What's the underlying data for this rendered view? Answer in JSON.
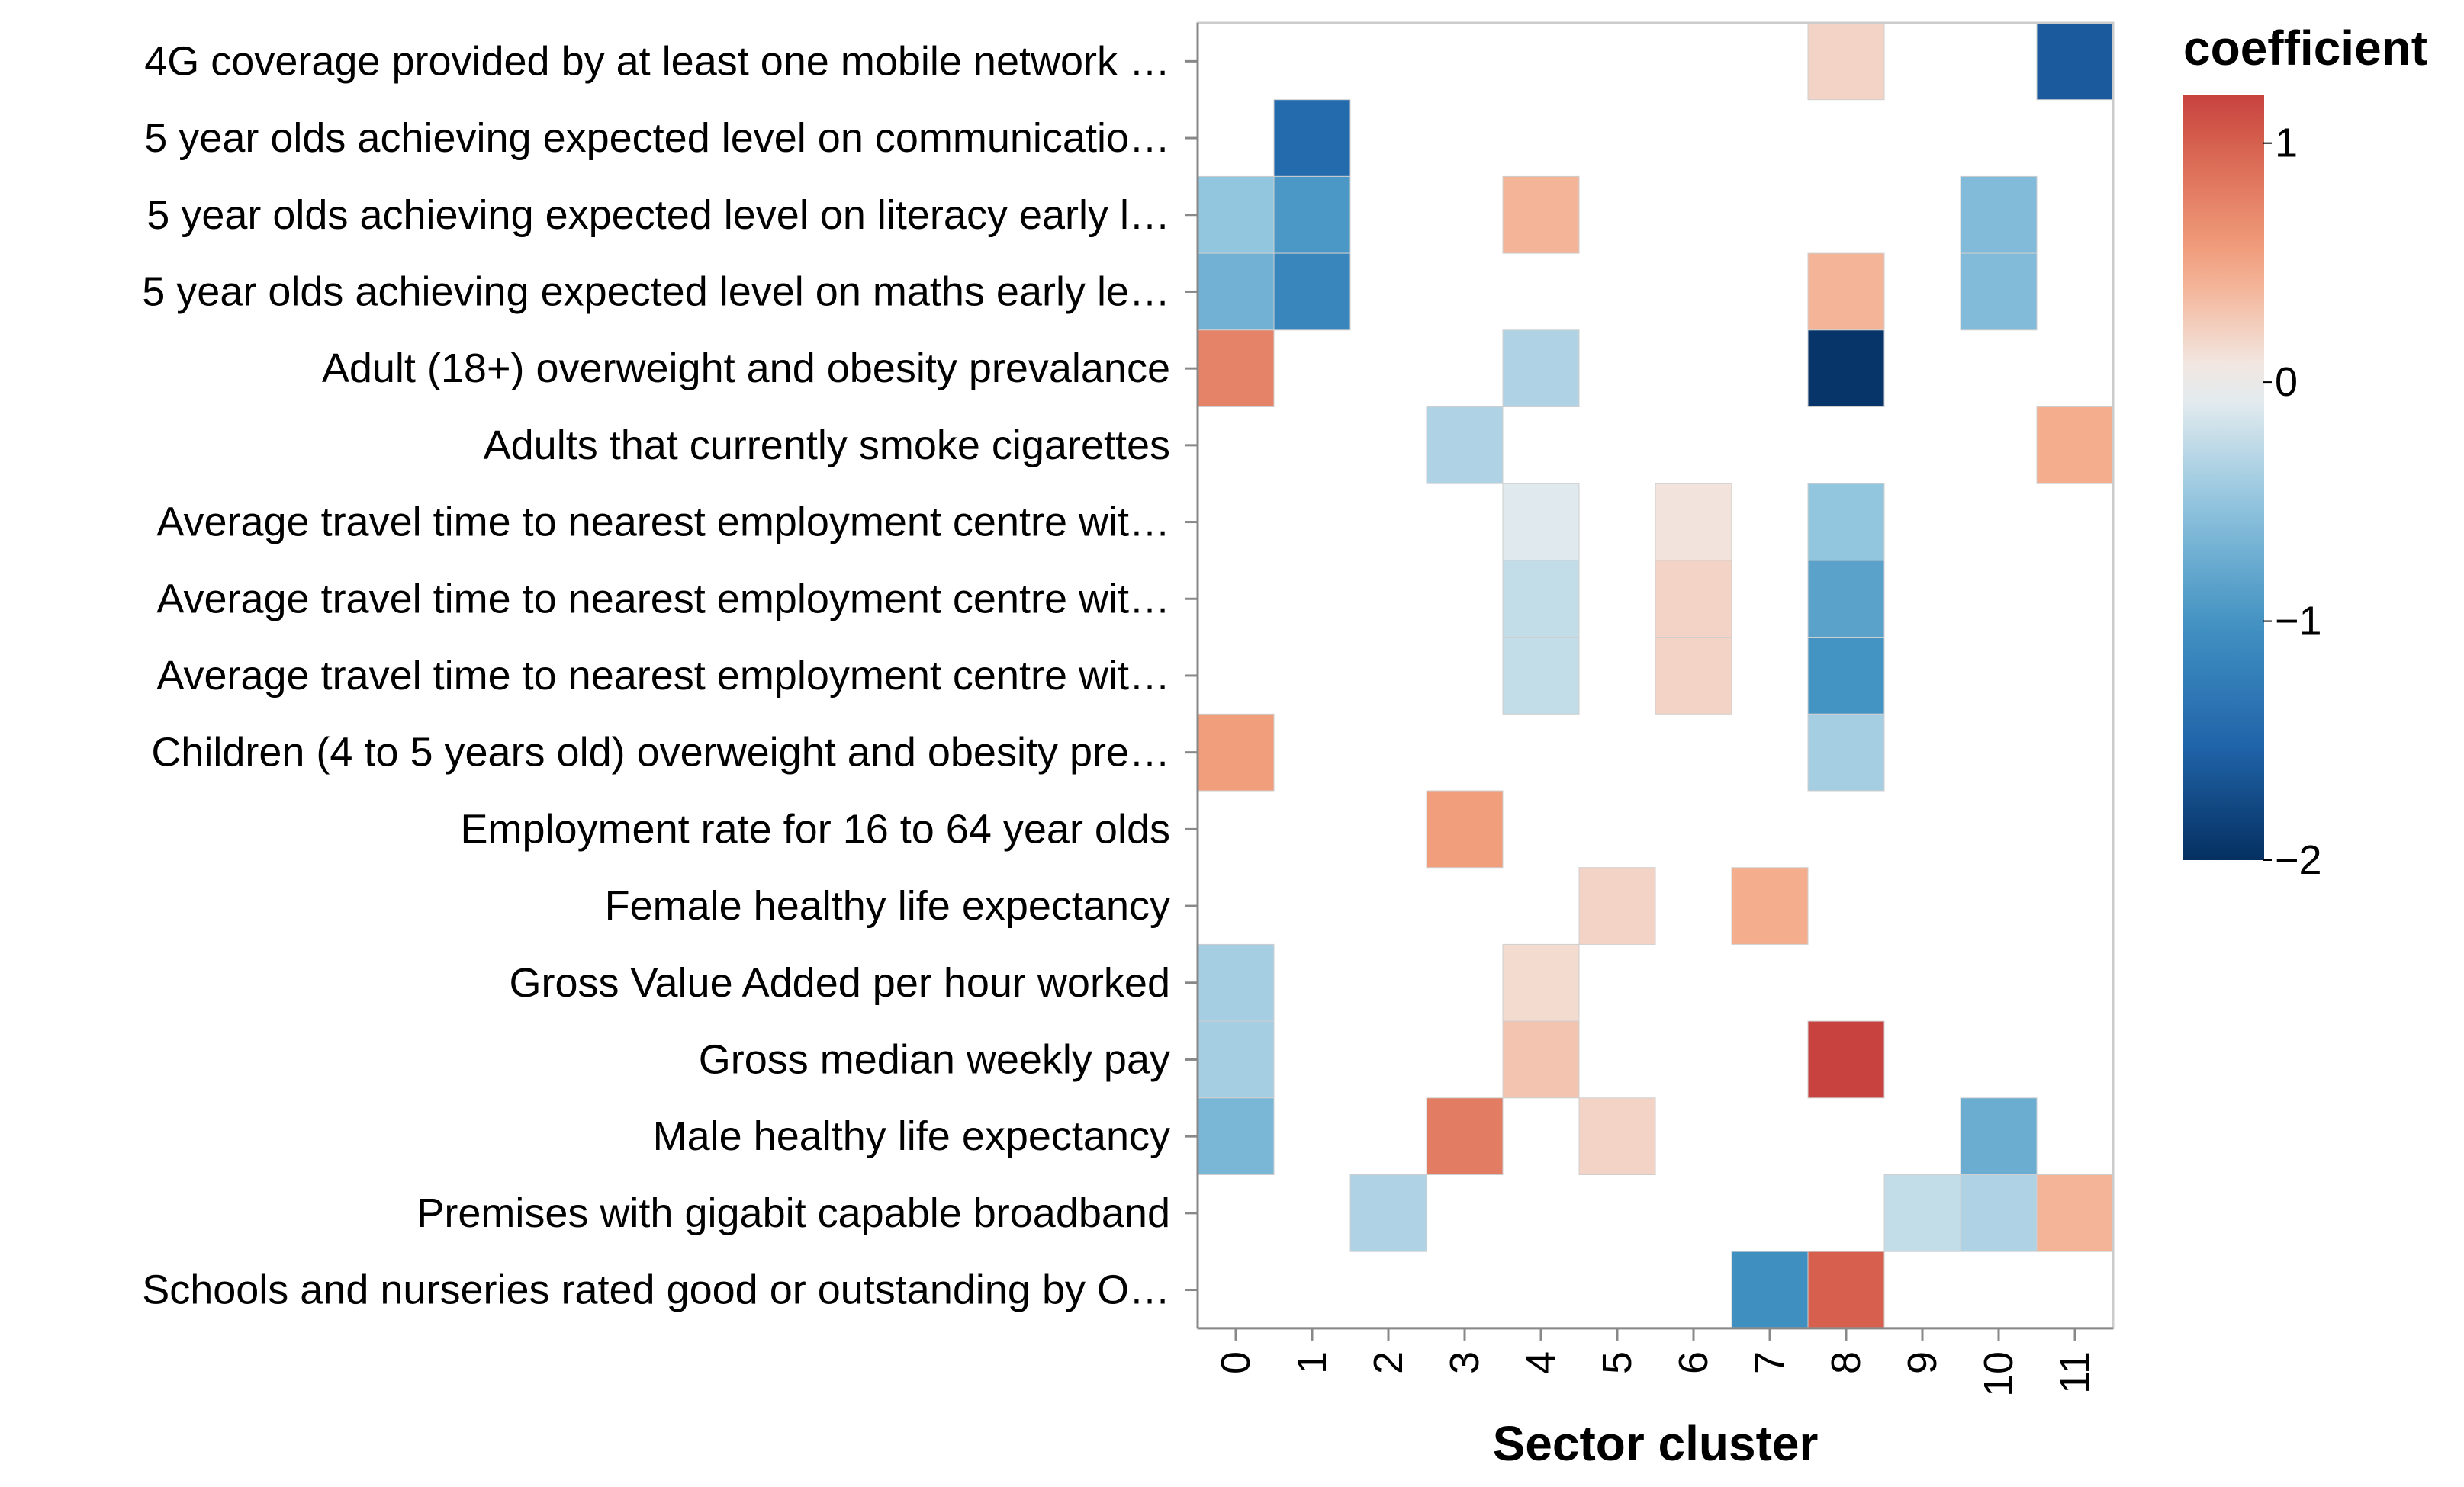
{
  "chart_data": {
    "type": "heatmap",
    "xlabel": "Sector cluster",
    "x_categories": [
      "0",
      "1",
      "2",
      "3",
      "4",
      "5",
      "6",
      "7",
      "8",
      "9",
      "10",
      "11"
    ],
    "y_categories": [
      "4G coverage provided by at least one mobile network …",
      "5 year olds achieving expected level on communicatio…",
      "5 year olds achieving expected level on literacy early l…",
      "5 year olds achieving expected level on maths early le…",
      "Adult (18+) overweight and obesity prevalance",
      "Adults that currently smoke cigarettes",
      "Average travel time to nearest employment centre wit…",
      "Average travel time to nearest employment centre wit…",
      "Average travel time to nearest employment centre wit…",
      "Children (4 to 5 years old) overweight and obesity pre…",
      "Employment rate for 16 to 64 year olds",
      "Female healthy life expectancy",
      "Gross Value Added per hour worked",
      "Gross median weekly pay",
      "Male healthy life expectancy",
      "Premises with gigabit capable broadband",
      "Schools and nurseries rated good or outstanding by O…"
    ],
    "cells": [
      {
        "row": 0,
        "col": 8,
        "value": 0.2
      },
      {
        "row": 0,
        "col": 11,
        "value": -1.6
      },
      {
        "row": 1,
        "col": 1,
        "value": -1.45
      },
      {
        "row": 2,
        "col": 0,
        "value": -0.5
      },
      {
        "row": 2,
        "col": 1,
        "value": -0.95
      },
      {
        "row": 2,
        "col": 4,
        "value": 0.4
      },
      {
        "row": 2,
        "col": 10,
        "value": -0.6
      },
      {
        "row": 3,
        "col": 0,
        "value": -0.7
      },
      {
        "row": 3,
        "col": 1,
        "value": -1.15
      },
      {
        "row": 3,
        "col": 8,
        "value": 0.4
      },
      {
        "row": 3,
        "col": 10,
        "value": -0.6
      },
      {
        "row": 4,
        "col": 0,
        "value": 0.75
      },
      {
        "row": 4,
        "col": 4,
        "value": -0.35
      },
      {
        "row": 4,
        "col": 8,
        "value": -1.95
      },
      {
        "row": 5,
        "col": 3,
        "value": -0.35
      },
      {
        "row": 5,
        "col": 11,
        "value": 0.45
      },
      {
        "row": 6,
        "col": 4,
        "value": -0.1
      },
      {
        "row": 6,
        "col": 6,
        "value": 0.1
      },
      {
        "row": 6,
        "col": 8,
        "value": -0.5
      },
      {
        "row": 7,
        "col": 4,
        "value": -0.25
      },
      {
        "row": 7,
        "col": 6,
        "value": 0.2
      },
      {
        "row": 7,
        "col": 8,
        "value": -0.85
      },
      {
        "row": 8,
        "col": 4,
        "value": -0.25
      },
      {
        "row": 8,
        "col": 6,
        "value": 0.2
      },
      {
        "row": 8,
        "col": 8,
        "value": -1.0
      },
      {
        "row": 9,
        "col": 0,
        "value": 0.55
      },
      {
        "row": 9,
        "col": 8,
        "value": -0.4
      },
      {
        "row": 10,
        "col": 3,
        "value": 0.55
      },
      {
        "row": 11,
        "col": 5,
        "value": 0.2
      },
      {
        "row": 11,
        "col": 7,
        "value": 0.45
      },
      {
        "row": 12,
        "col": 0,
        "value": -0.4
      },
      {
        "row": 12,
        "col": 4,
        "value": 0.15
      },
      {
        "row": 13,
        "col": 0,
        "value": -0.4
      },
      {
        "row": 13,
        "col": 4,
        "value": 0.3
      },
      {
        "row": 13,
        "col": 8,
        "value": 1.2
      },
      {
        "row": 14,
        "col": 0,
        "value": -0.65
      },
      {
        "row": 14,
        "col": 3,
        "value": 0.8
      },
      {
        "row": 14,
        "col": 5,
        "value": 0.2
      },
      {
        "row": 14,
        "col": 10,
        "value": -0.75
      },
      {
        "row": 15,
        "col": 2,
        "value": -0.35
      },
      {
        "row": 15,
        "col": 9,
        "value": -0.25
      },
      {
        "row": 15,
        "col": 10,
        "value": -0.35
      },
      {
        "row": 15,
        "col": 11,
        "value": 0.4
      },
      {
        "row": 16,
        "col": 7,
        "value": -1.05
      },
      {
        "row": 16,
        "col": 8,
        "value": 1.0
      }
    ],
    "legend": {
      "title": "coefficient",
      "domain": [
        -2,
        1.2
      ],
      "ticks": [
        1,
        0,
        -1,
        -2
      ],
      "tick_labels": [
        "1",
        "0",
        "−1",
        "−2"
      ],
      "scheme": "redblue",
      "placement": "top-right"
    },
    "colors": {
      "negative_end": "#1a4d8c",
      "neutral": "#f2f2f2",
      "positive_end": "#8b0a26"
    }
  }
}
